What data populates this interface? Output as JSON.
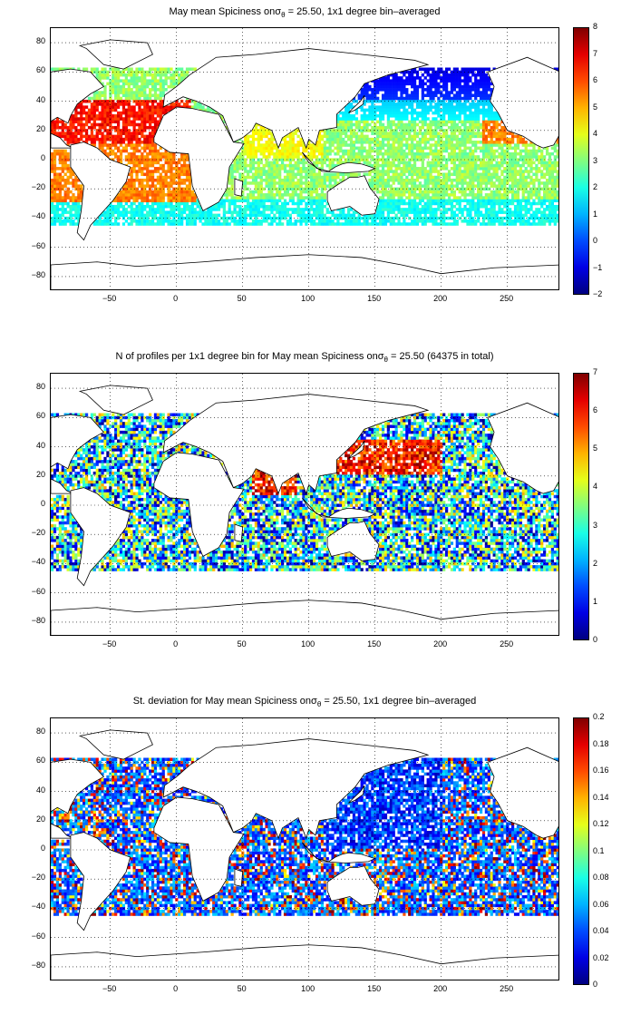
{
  "panels": [
    {
      "id": "spice",
      "title_pre": "May mean Spiciness on",
      "title_sym": "σ",
      "title_sub": "θ",
      "title_post": " = 25.50, 1x1 degree bin–averaged",
      "colorbar_ticks": [
        "8",
        "7",
        "6",
        "5",
        "4",
        "3",
        "2",
        "1",
        "0",
        "−1",
        "−2"
      ],
      "colorbar_range": [
        -2,
        8
      ],
      "field": "spiciness"
    },
    {
      "id": "count",
      "title_pre": "N of profiles per 1x1 degree bin for May mean Spiciness on",
      "title_sym": "σ",
      "title_sub": "θ",
      "title_post": " = 25.50 (64375 in total)",
      "colorbar_ticks": [
        "7",
        "6",
        "5",
        "4",
        "3",
        "2",
        "1",
        "0"
      ],
      "colorbar_range": [
        0,
        7
      ],
      "field": "count"
    },
    {
      "id": "std",
      "title_pre": "St. deviation for May mean Spiciness on",
      "title_sym": "σ",
      "title_sub": "θ",
      "title_post": " = 25.50, 1x1 degree bin–averaged",
      "colorbar_ticks": [
        "0.2",
        "0.18",
        "0.16",
        "0.14",
        "0.12",
        "0.1",
        "0.08",
        "0.06",
        "0.04",
        "0.02",
        "0"
      ],
      "colorbar_range": [
        0,
        0.2
      ],
      "field": "std"
    }
  ],
  "axes": {
    "y_ticks": [
      "80",
      "60",
      "40",
      "20",
      "0",
      "−20",
      "−40",
      "−60",
      "−80"
    ],
    "x_ticks": [
      "−50",
      "0",
      "50",
      "100",
      "150",
      "200",
      "250"
    ],
    "lon_range": [
      -95,
      290
    ],
    "lat_range": [
      -90,
      90
    ]
  },
  "colormap": "jet"
}
